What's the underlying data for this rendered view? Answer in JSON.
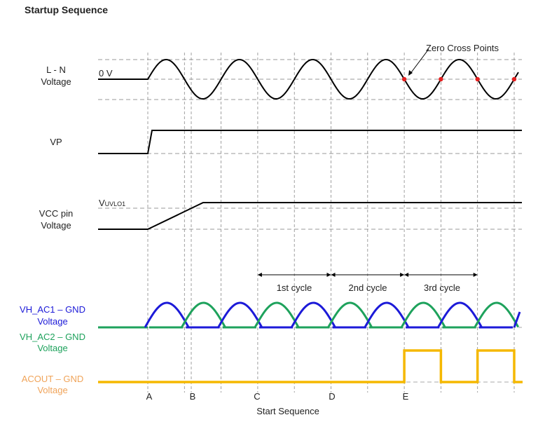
{
  "title": "Startup Sequence",
  "signals": {
    "ln": [
      "L - N",
      "Voltage"
    ],
    "vp": [
      "VP"
    ],
    "vcc": [
      "VCC pin",
      "Voltage"
    ],
    "ac1": [
      "VH_AC1 – GND",
      "Voltage"
    ],
    "ac2": [
      "VH_AC2 – GND",
      "Voltage"
    ],
    "acout": [
      "ACOUT – GND",
      "Voltage"
    ]
  },
  "zero_label": "0 V",
  "uvlo_label": "V",
  "uvlo_sub": "UVLO1",
  "zero_cross_annotation": "Zero Cross Points",
  "cycles": [
    "1st cycle",
    "2nd cycle",
    "3rd cycle"
  ],
  "events": [
    "A",
    "B",
    "C",
    "D",
    "E"
  ],
  "xlabel": "Start Sequence",
  "colors": {
    "ac1": "#1c1ad8",
    "ac2": "#1ea25c",
    "acout": "#f5b800",
    "acout_label": "#f0a45a",
    "zero_cross": "#e52020"
  }
}
